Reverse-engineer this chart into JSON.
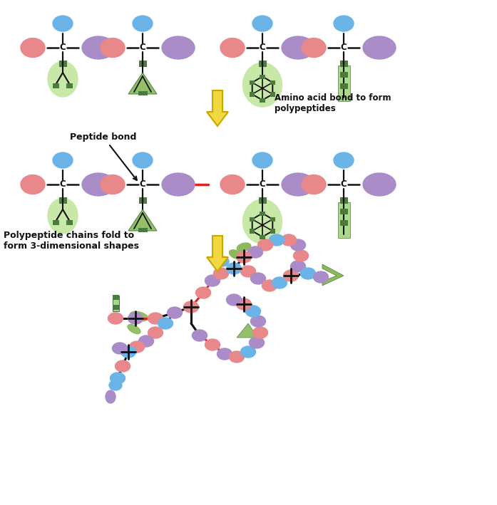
{
  "bg_color": "#ffffff",
  "blue_color": "#6ab4e8",
  "pink_color": "#e8888a",
  "purple_color": "#a98cc8",
  "green_dark": "#4a7c3f",
  "green_light": "#8aba5a",
  "green_fill": "#acd88a",
  "green_circle": "#c8e8a8",
  "yellow_arrow": "#f0d840",
  "yellow_arrow_outline": "#c8a800",
  "red_bond": "#dd2222",
  "black": "#111111",
  "text_label1": "Peptide bond",
  "text_label2": "Amino acid bond to form\npolypeptides",
  "text_label3": "Polypeptide chains fold to\nform 3-dimensional shapes"
}
